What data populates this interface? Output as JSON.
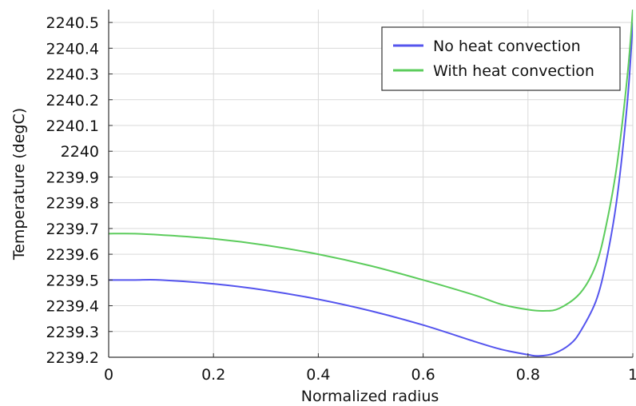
{
  "chart_data": {
    "type": "line",
    "title": "",
    "xlabel": "Normalized radius",
    "ylabel": "Temperature (degC)",
    "xlim": [
      0,
      1
    ],
    "ylim": [
      2239.2,
      2240.55
    ],
    "x_ticks": [
      "0",
      "0.2",
      "0.4",
      "0.6",
      "0.8",
      "1"
    ],
    "y_ticks": [
      "2239.2",
      "2239.3",
      "2239.4",
      "2239.5",
      "2239.6",
      "2239.7",
      "2239.8",
      "2239.9",
      "2240",
      "2240.1",
      "2240.2",
      "2240.3",
      "2240.4",
      "2240.5"
    ],
    "grid": true,
    "legend_position": "top-right",
    "series": [
      {
        "name": "No heat convection",
        "color": "#5555ee",
        "x": [
          0,
          0.05,
          0.1,
          0.2,
          0.3,
          0.4,
          0.5,
          0.6,
          0.7,
          0.75,
          0.8,
          0.82,
          0.85,
          0.88,
          0.9,
          0.93,
          0.95,
          0.97,
          0.99,
          1.0
        ],
        "y": [
          2239.5,
          2239.5,
          2239.5,
          2239.485,
          2239.46,
          2239.425,
          2239.38,
          2239.325,
          2239.26,
          2239.23,
          2239.21,
          2239.205,
          2239.215,
          2239.25,
          2239.3,
          2239.42,
          2239.58,
          2239.82,
          2240.2,
          2240.5
        ]
      },
      {
        "name": "With heat convection",
        "color": "#5ccc5c",
        "x": [
          0,
          0.05,
          0.1,
          0.2,
          0.3,
          0.4,
          0.5,
          0.6,
          0.7,
          0.75,
          0.8,
          0.83,
          0.86,
          0.9,
          0.93,
          0.95,
          0.97,
          0.99,
          1.0
        ],
        "y": [
          2239.68,
          2239.68,
          2239.675,
          2239.66,
          2239.635,
          2239.6,
          2239.555,
          2239.5,
          2239.44,
          2239.405,
          2239.385,
          2239.38,
          2239.39,
          2239.45,
          2239.56,
          2239.72,
          2239.95,
          2240.3,
          2240.55
        ]
      }
    ]
  }
}
